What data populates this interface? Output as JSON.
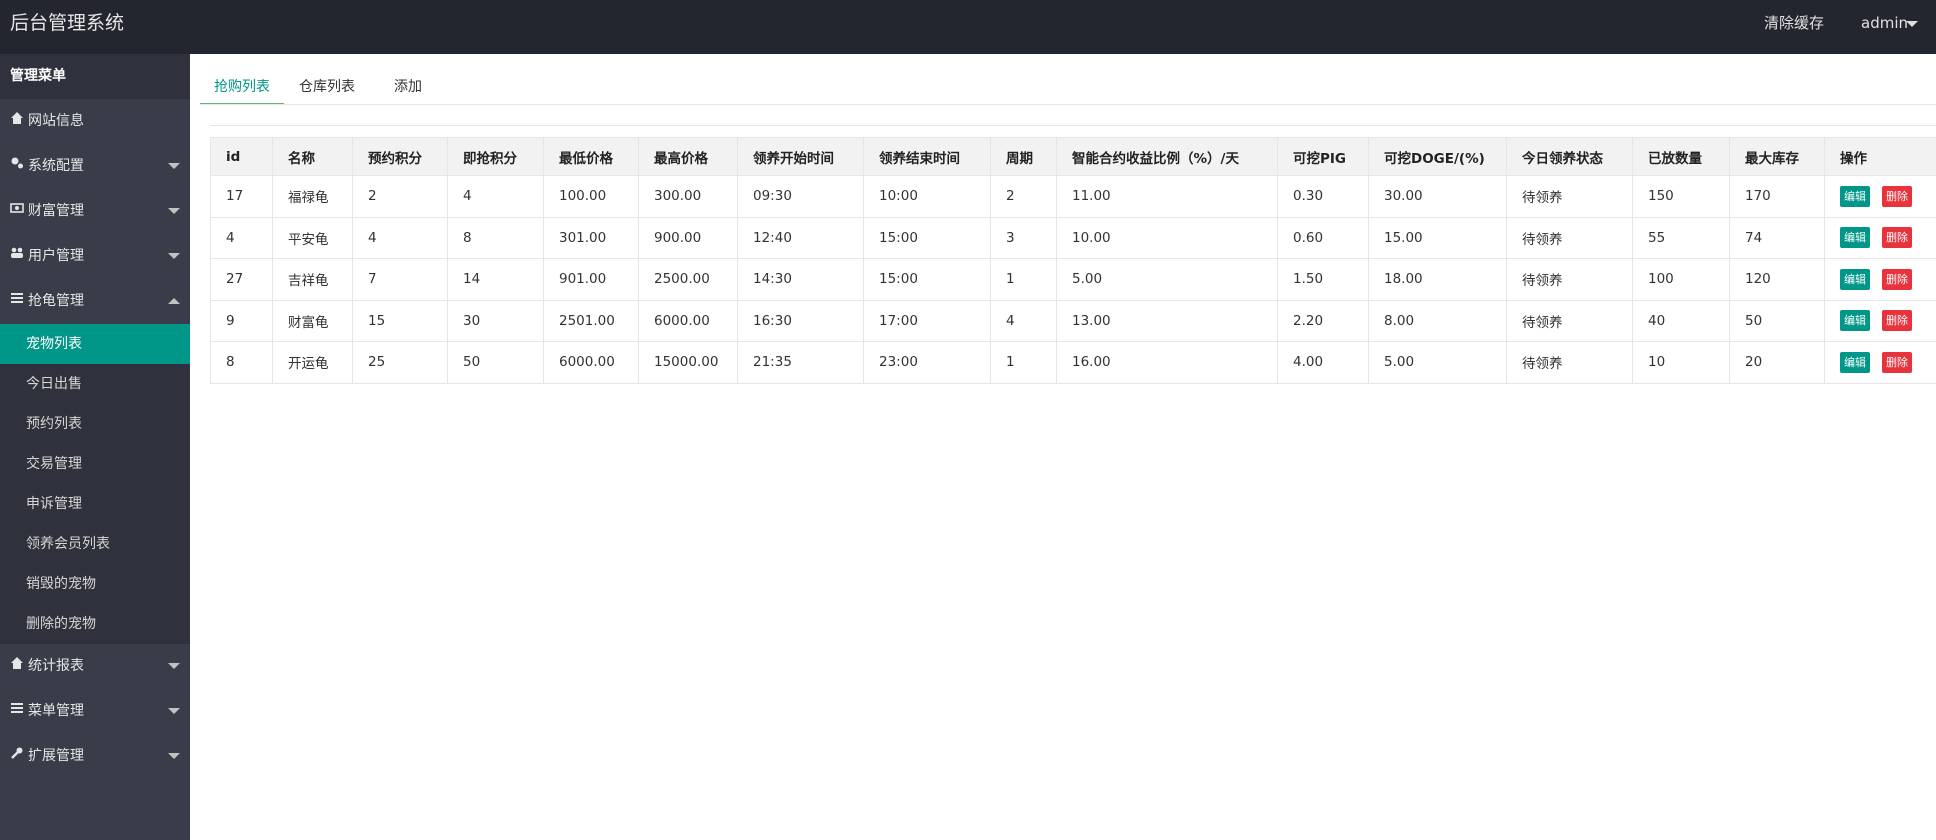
{
  "header": {
    "title": "后台管理系统",
    "links": [
      "清除缓存",
      "admin"
    ]
  },
  "sidebar": {
    "heading": "管理菜单",
    "menu": [
      {
        "label": "网站信息",
        "icon": "home"
      },
      {
        "label": "系统配置",
        "icon": "gear",
        "expandable": true
      },
      {
        "label": "财富管理",
        "icon": "money",
        "expandable": true
      },
      {
        "label": "用户管理",
        "icon": "users",
        "expandable": true
      },
      {
        "label": "抢龟管理",
        "icon": "bars",
        "expandable": true,
        "open": true,
        "active_child": 0,
        "children": [
          "宠物列表",
          "今日出售",
          "预约列表",
          "交易管理",
          "申诉管理",
          "领养会员列表",
          "销毁的宠物",
          "删除的宠物"
        ]
      },
      {
        "label": "统计报表",
        "icon": "home",
        "expandable": true
      },
      {
        "label": "菜单管理",
        "icon": "bars",
        "expandable": true
      },
      {
        "label": "扩展管理",
        "icon": "wrench",
        "expandable": true
      }
    ]
  },
  "tabs": {
    "items": [
      "抢购列表",
      "仓库列表",
      "添加"
    ],
    "active": 0
  },
  "table": {
    "columns": [
      "id",
      "名称",
      "预约积分",
      "即抢积分",
      "最低价格",
      "最高价格",
      "领养开始时间",
      "领养结束时间",
      "周期",
      "智能合约收益比例（%）/天",
      "可挖PIG",
      "可挖DOGE/(%)",
      "今日领养状态",
      "已放数量",
      "最大库存",
      "操作"
    ],
    "rows": [
      [
        "17",
        "福禄龟",
        "2",
        "4",
        "100.00",
        "300.00",
        "09:30",
        "10:00",
        "2",
        "11.00",
        "0.30",
        "30.00",
        "待领养",
        "150",
        "170"
      ],
      [
        "4",
        "平安龟",
        "4",
        "8",
        "301.00",
        "900.00",
        "12:40",
        "15:00",
        "3",
        "10.00",
        "0.60",
        "15.00",
        "待领养",
        "55",
        "74"
      ],
      [
        "27",
        "吉祥龟",
        "7",
        "14",
        "901.00",
        "2500.00",
        "14:30",
        "15:00",
        "1",
        "5.00",
        "1.50",
        "18.00",
        "待领养",
        "100",
        "120"
      ],
      [
        "9",
        "财富龟",
        "15",
        "30",
        "2501.00",
        "6000.00",
        "16:30",
        "17:00",
        "4",
        "13.00",
        "2.20",
        "8.00",
        "待领养",
        "40",
        "50"
      ],
      [
        "8",
        "开运龟",
        "25",
        "50",
        "6000.00",
        "15000.00",
        "21:35",
        "23:00",
        "1",
        "16.00",
        "4.00",
        "5.00",
        "待领养",
        "10",
        "20"
      ]
    ],
    "actions": [
      "编辑",
      "删除"
    ]
  }
}
